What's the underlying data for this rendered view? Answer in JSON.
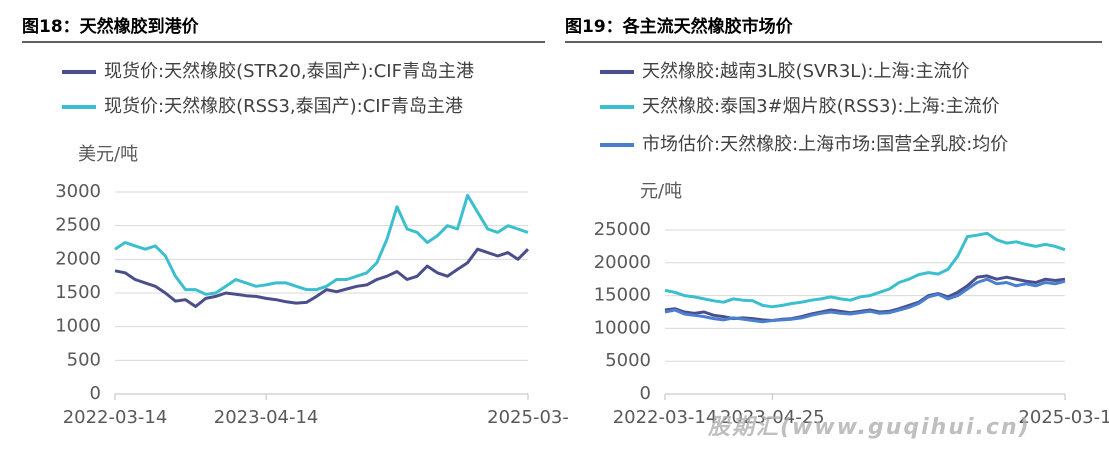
{
  "chart_data": [
    {
      "type": "line",
      "title": "图18：天然橡胶到港价",
      "y_label": "美元/吨",
      "categories": [
        "2022-03-14",
        null,
        null,
        null,
        null,
        null,
        null,
        null,
        null,
        null,
        null,
        null,
        null,
        null,
        null,
        "2023-04-14",
        null,
        null,
        null,
        null,
        null,
        null,
        null,
        null,
        null,
        null,
        null,
        null,
        null,
        null,
        null,
        null,
        null,
        null,
        null,
        null,
        null,
        null,
        null,
        null,
        null,
        "2025-03-"
      ],
      "series": [
        {
          "name": "现货价:天然橡胶(STR20,泰国产):CIF青岛主港",
          "color": "#4a4f8c",
          "values": [
            1830,
            1800,
            1700,
            1650,
            1600,
            1500,
            1380,
            1400,
            1300,
            1420,
            1450,
            1500,
            1480,
            1460,
            1450,
            1420,
            1400,
            1370,
            1350,
            1360,
            1450,
            1550,
            1520,
            1560,
            1600,
            1620,
            1700,
            1750,
            1820,
            1700,
            1750,
            1900,
            1800,
            1750,
            1850,
            1950,
            2150,
            2100,
            2050,
            2100,
            2000,
            2150
          ]
        },
        {
          "name": "现货价:天然橡胶(RSS3,泰国产):CIF青岛主港",
          "color": "#3bbfcf",
          "values": [
            2150,
            2250,
            2200,
            2150,
            2200,
            2050,
            1750,
            1550,
            1550,
            1480,
            1500,
            1600,
            1700,
            1650,
            1600,
            1620,
            1650,
            1650,
            1600,
            1550,
            1550,
            1600,
            1700,
            1700,
            1750,
            1800,
            1950,
            2300,
            2780,
            2450,
            2400,
            2250,
            2350,
            2500,
            2450,
            2950,
            2700,
            2450,
            2400,
            2500,
            2450,
            2400
          ]
        }
      ],
      "ylim": [
        0,
        3000
      ],
      "yticks": [
        0,
        500,
        1000,
        1500,
        2000,
        2500,
        3000
      ],
      "grid": true
    },
    {
      "type": "line",
      "title": "图19：各主流天然橡胶市场价",
      "y_label": "元/吨",
      "categories": [
        "2022-03-14",
        null,
        null,
        null,
        null,
        null,
        null,
        null,
        null,
        null,
        null,
        "2023-04-25",
        null,
        null,
        null,
        null,
        null,
        null,
        null,
        null,
        null,
        null,
        null,
        null,
        null,
        null,
        null,
        null,
        null,
        null,
        null,
        null,
        null,
        null,
        null,
        null,
        null,
        null,
        null,
        null,
        null,
        "2025-03-1"
      ],
      "series": [
        {
          "name": "天然橡胶:越南3L胶(SVR3L):上海:主流价",
          "color": "#4a4f8c",
          "values": [
            12800,
            13000,
            12500,
            12300,
            12500,
            12000,
            11800,
            11500,
            11600,
            11500,
            11300,
            11200,
            11400,
            11500,
            11800,
            12200,
            12500,
            12800,
            12600,
            12400,
            12600,
            12800,
            12500,
            12600,
            13000,
            13500,
            14000,
            15000,
            15300,
            14800,
            15500,
            16500,
            17800,
            18000,
            17500,
            17800,
            17500,
            17200,
            17000,
            17500,
            17300,
            17500
          ]
        },
        {
          "name": "天然橡胶:泰国3#烟片胶(RSS3):上海:主流价",
          "color": "#3bbfcf",
          "values": [
            15800,
            15500,
            15000,
            14800,
            14500,
            14200,
            14000,
            14500,
            14300,
            14200,
            13500,
            13300,
            13500,
            13800,
            14000,
            14300,
            14500,
            14800,
            14500,
            14300,
            14800,
            15000,
            15500,
            16000,
            17000,
            17500,
            18200,
            18500,
            18300,
            19000,
            21000,
            24000,
            24200,
            24500,
            23500,
            23000,
            23200,
            22800,
            22500,
            22800,
            22500,
            22000
          ]
        },
        {
          "name": "市场估价:天然橡胶:上海市场:国营全乳胶:均价",
          "color": "#4a7fd0",
          "values": [
            12500,
            12800,
            12200,
            12000,
            11800,
            11500,
            11300,
            11600,
            11400,
            11200,
            11000,
            11200,
            11300,
            11400,
            11600,
            12000,
            12300,
            12500,
            12300,
            12200,
            12400,
            12600,
            12300,
            12400,
            12800,
            13200,
            13800,
            14800,
            15200,
            14500,
            15000,
            16000,
            17000,
            17500,
            16800,
            17000,
            16500,
            16800,
            16500,
            17000,
            16800,
            17200
          ]
        }
      ],
      "ylim": [
        0,
        25000
      ],
      "yticks": [
        0,
        5000,
        10000,
        15000,
        20000,
        25000
      ],
      "grid": true,
      "watermark": "股期汇(www.guqihui.cn)"
    }
  ]
}
